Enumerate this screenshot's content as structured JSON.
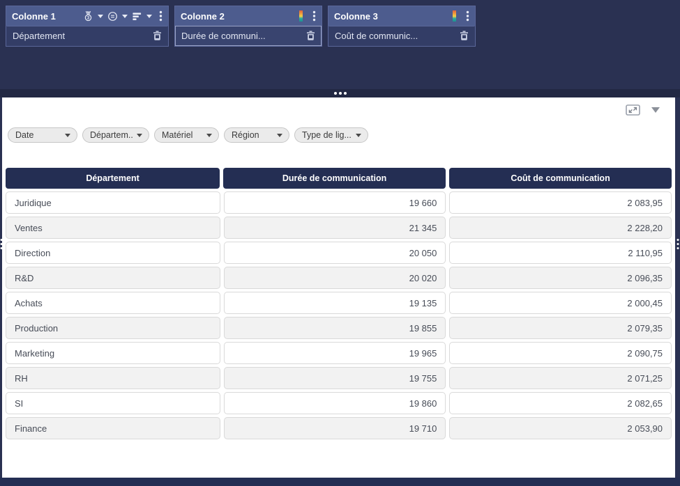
{
  "builder": {
    "columns": [
      {
        "title": "Colonne 1",
        "field": "Département",
        "variant": "dimension",
        "selected": false
      },
      {
        "title": "Colonne 2",
        "field": "Durée de communi...",
        "variant": "measure",
        "selected": true
      },
      {
        "title": "Colonne 3",
        "field": "Coût de communic...",
        "variant": "measure",
        "selected": false
      }
    ],
    "icons": {
      "dimension_header": [
        "top-n-medal-icon",
        "caret-down-icon",
        "filter-equals-icon",
        "caret-down-icon",
        "sort-bars-icon",
        "caret-down-icon",
        "kebab-menu-icon"
      ],
      "measure_header": [
        "color-scale-icon",
        "kebab-menu-icon"
      ],
      "field_delete": "trash-icon"
    }
  },
  "panel_toolbar": {
    "icons": [
      "resize-expand-icon",
      "dropdown-triangle-icon"
    ]
  },
  "filters": [
    "Date",
    "Départem...",
    "Matériel",
    "Région",
    "Type de lig..."
  ],
  "table": {
    "headers": [
      "Département",
      "Durée de communication",
      "Coût de communication"
    ],
    "rows": [
      [
        "Juridique",
        "19 660",
        "2 083,95"
      ],
      [
        "Ventes",
        "21 345",
        "2 228,20"
      ],
      [
        "Direction",
        "20 050",
        "2 110,95"
      ],
      [
        "R&D",
        "20 020",
        "2 096,35"
      ],
      [
        "Achats",
        "19 135",
        "2 000,45"
      ],
      [
        "Production",
        "19 855",
        "2 079,35"
      ],
      [
        "Marketing",
        "19 965",
        "2 090,75"
      ],
      [
        "RH",
        "19 755",
        "2 071,25"
      ],
      [
        "SI",
        "19 860",
        "2 082,65"
      ],
      [
        "Finance",
        "19 710",
        "2 053,90"
      ]
    ]
  },
  "colors": {
    "page_bg": "#2a3152",
    "widget_header_bg": "#4d5c8e",
    "widget_field_bg": "#333d66",
    "divider_bg": "#222843",
    "table_header_bg": "#242e53",
    "row_alt_bg": "#f2f2f2",
    "chip_bg": "#ebebeb",
    "bottom_bar_bg": "#242e53",
    "color_scale": [
      "#e26038",
      "#f3cf48",
      "#2aa8a0"
    ]
  }
}
